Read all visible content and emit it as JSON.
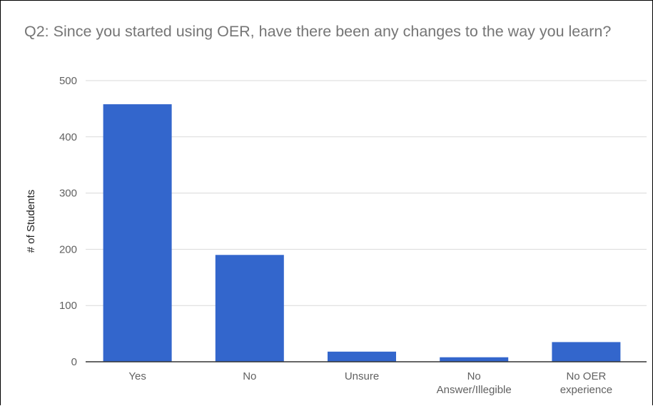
{
  "chart_data": {
    "type": "bar",
    "title": "Q2:  Since you started using OER, have there been any changes to the way you learn?",
    "ylabel": "# of Students",
    "xlabel": "",
    "categories": [
      "Yes",
      "No",
      "Unsure",
      "No Answer/Illegible",
      "No OER experience"
    ],
    "category_lines": [
      [
        "Yes"
      ],
      [
        "No"
      ],
      [
        "Unsure"
      ],
      [
        "No",
        "Answer/Illegible"
      ],
      [
        "No OER",
        "experience"
      ]
    ],
    "values": [
      458,
      190,
      18,
      8,
      35
    ],
    "ylim": [
      0,
      500
    ],
    "yticks": [
      0,
      100,
      200,
      300,
      400,
      500
    ],
    "grid": true,
    "legend": "none",
    "colors": {
      "bar": "#3366cc",
      "grid": "#d9d9d9",
      "axis": "#333333"
    }
  }
}
